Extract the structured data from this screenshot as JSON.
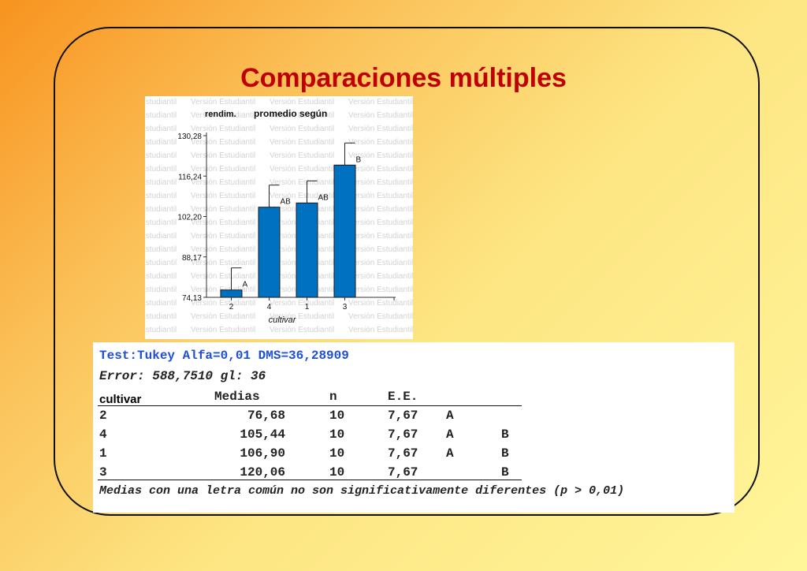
{
  "slide": {
    "title": "Comparaciones múltiples"
  },
  "chart_data": {
    "type": "bar",
    "title_parts": [
      "rendim.",
      "promedio según"
    ],
    "xlabel": "cultivar",
    "categories": [
      "2",
      "4",
      "1",
      "3"
    ],
    "values": [
      76.68,
      105.44,
      106.9,
      120.06
    ],
    "error_upper": [
      84.35,
      113.11,
      114.57,
      127.73
    ],
    "letters": [
      "A",
      "AB",
      "AB",
      "B"
    ],
    "yticks": [
      "74,13",
      "88,17",
      "102,20",
      "116,24",
      "130,28"
    ],
    "ylim": [
      74.13,
      130.28
    ],
    "bar_color": "#0070c0",
    "watermark": "Versión Estudiantil"
  },
  "stats": {
    "test_line": "Test:Tukey Alfa=0,01 DMS=36,28909",
    "error_line": "Error: 588,7510 gl: 36",
    "headers": {
      "cultivar": "cultivar",
      "medias": "Medias",
      "n": "n",
      "ee": "E.E."
    },
    "rows": [
      {
        "cultivar": "2",
        "media": "76,68",
        "n": "10",
        "ee": "7,67",
        "g1": "A",
        "g2": ""
      },
      {
        "cultivar": "4",
        "media": "105,44",
        "n": "10",
        "ee": "7,67",
        "g1": "A",
        "g2": "B"
      },
      {
        "cultivar": "1",
        "media": "106,90",
        "n": "10",
        "ee": "7,67",
        "g1": "A",
        "g2": "B"
      },
      {
        "cultivar": "3",
        "media": "120,06",
        "n": "10",
        "ee": "7,67",
        "g1": "",
        "g2": "B"
      }
    ],
    "note": "Medias con una letra común no son significativamente diferentes (p > 0,01)"
  }
}
